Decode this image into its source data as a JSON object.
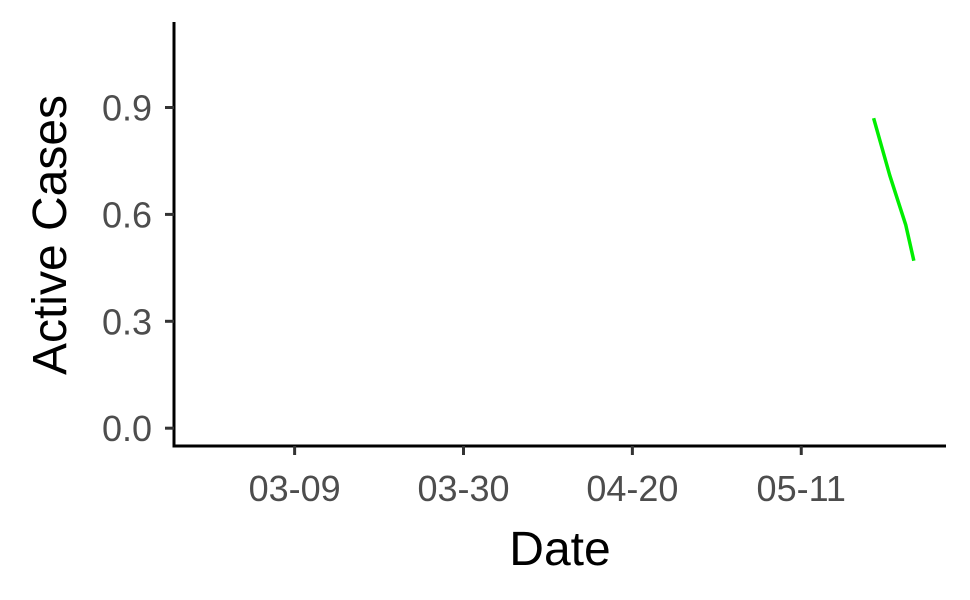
{
  "chart_data": {
    "type": "line",
    "title": "",
    "xlabel": "Date",
    "ylabel": "Active Cases",
    "x_ticks": [
      "03-09",
      "03-30",
      "04-20",
      "05-11"
    ],
    "y_ticks": [
      "0.0",
      "0.3",
      "0.6",
      "0.9"
    ],
    "ylim": [
      -0.05,
      1.14
    ],
    "xlim": [
      "02-23",
      "05-29"
    ],
    "grid": false,
    "legend": "none",
    "series": [
      {
        "color": "#00ee00",
        "x": [
          "05-20",
          "05-21",
          "05-22",
          "05-23",
          "05-24",
          "05-25"
        ],
        "y": [
          0.87,
          0.79,
          0.71,
          0.64,
          0.57,
          0.47
        ]
      }
    ]
  },
  "colors": {
    "axis": "#000000",
    "tick_text": "#4d4d4d",
    "line": "#00ee00"
  }
}
